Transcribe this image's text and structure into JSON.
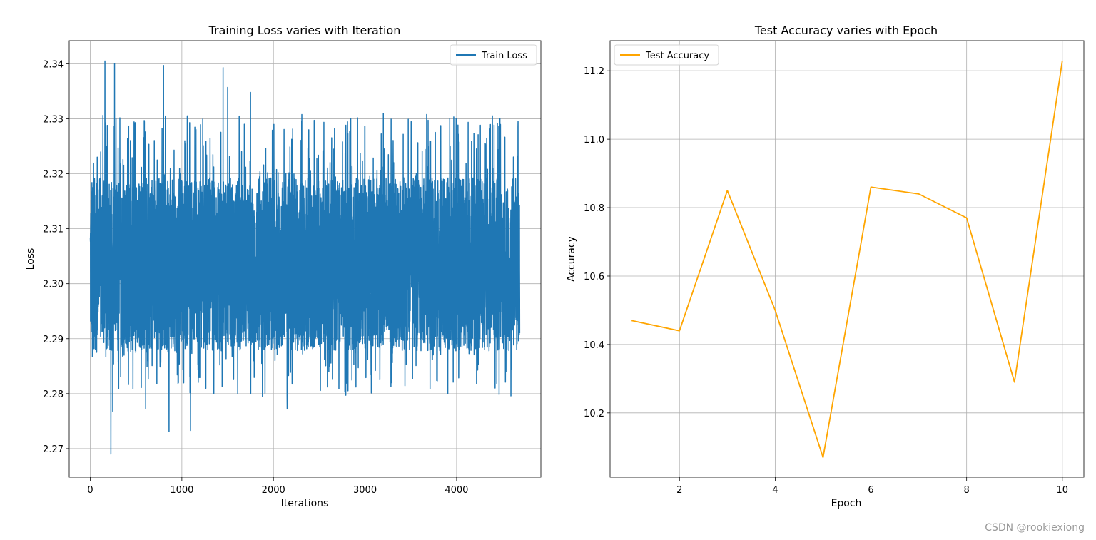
{
  "chart_data": [
    {
      "type": "line",
      "title": "Training Loss varies with Iteration",
      "xlabel": "Iterations",
      "ylabel": "Loss",
      "xlim": [
        -230,
        4920
      ],
      "ylim": [
        2.2648,
        2.3442
      ],
      "xticks": [
        0,
        1000,
        2000,
        3000,
        4000
      ],
      "yticks": [
        2.27,
        2.28,
        2.29,
        2.3,
        2.31,
        2.32,
        2.33,
        2.34
      ],
      "ytick_labels": [
        "2.27",
        "2.28",
        "2.29",
        "2.30",
        "2.31",
        "2.32",
        "2.33",
        "2.34"
      ],
      "grid": true,
      "legend_position": "upper-right",
      "series": [
        {
          "name": "Train Loss",
          "color": "#1f77b4",
          "n_points": 4690,
          "x_range": [
            0,
            4689
          ],
          "mean": 2.3035,
          "typical_band": [
            2.289,
            2.319
          ],
          "max": 2.3405,
          "min": 2.269,
          "peaks": [
            [
              160,
              2.3405
            ],
            [
              265,
              2.34
            ],
            [
              800,
              2.3397
            ],
            [
              1450,
              2.3393
            ],
            [
              1500,
              2.3357
            ],
            [
              1750,
              2.3348
            ],
            [
              3200,
              2.331
            ],
            [
              3995,
              2.33
            ],
            [
              4670,
              2.3285
            ]
          ],
          "troughs": [
            [
              225,
              2.269
            ],
            [
              245,
              2.2768
            ],
            [
              860,
              2.2731
            ],
            [
              1095,
              2.2733
            ],
            [
              2150,
              2.2772
            ],
            [
              605,
              2.2773
            ],
            [
              1880,
              2.2795
            ],
            [
              2790,
              2.2797
            ]
          ]
        }
      ]
    },
    {
      "type": "line",
      "title": "Test Accuracy varies with Epoch",
      "xlabel": "Epoch",
      "ylabel": "Accuracy",
      "xlim": [
        0.55,
        10.45
      ],
      "ylim": [
        10.012,
        11.288
      ],
      "xticks": [
        2,
        4,
        6,
        8,
        10
      ],
      "yticks": [
        10.2,
        10.4,
        10.6,
        10.8,
        11.0,
        11.2
      ],
      "ytick_labels": [
        "10.2",
        "10.4",
        "10.6",
        "10.8",
        "11.0",
        "11.2"
      ],
      "grid": true,
      "legend_position": "upper-left",
      "series": [
        {
          "name": "Test Accuracy",
          "color": "#ffa500",
          "x": [
            1,
            2,
            3,
            4,
            5,
            6,
            7,
            8,
            9,
            10
          ],
          "values": [
            10.47,
            10.44,
            10.85,
            10.5,
            10.07,
            10.86,
            10.84,
            10.77,
            10.29,
            11.23
          ]
        }
      ]
    }
  ],
  "watermark": "CSDN @rookiexiong"
}
